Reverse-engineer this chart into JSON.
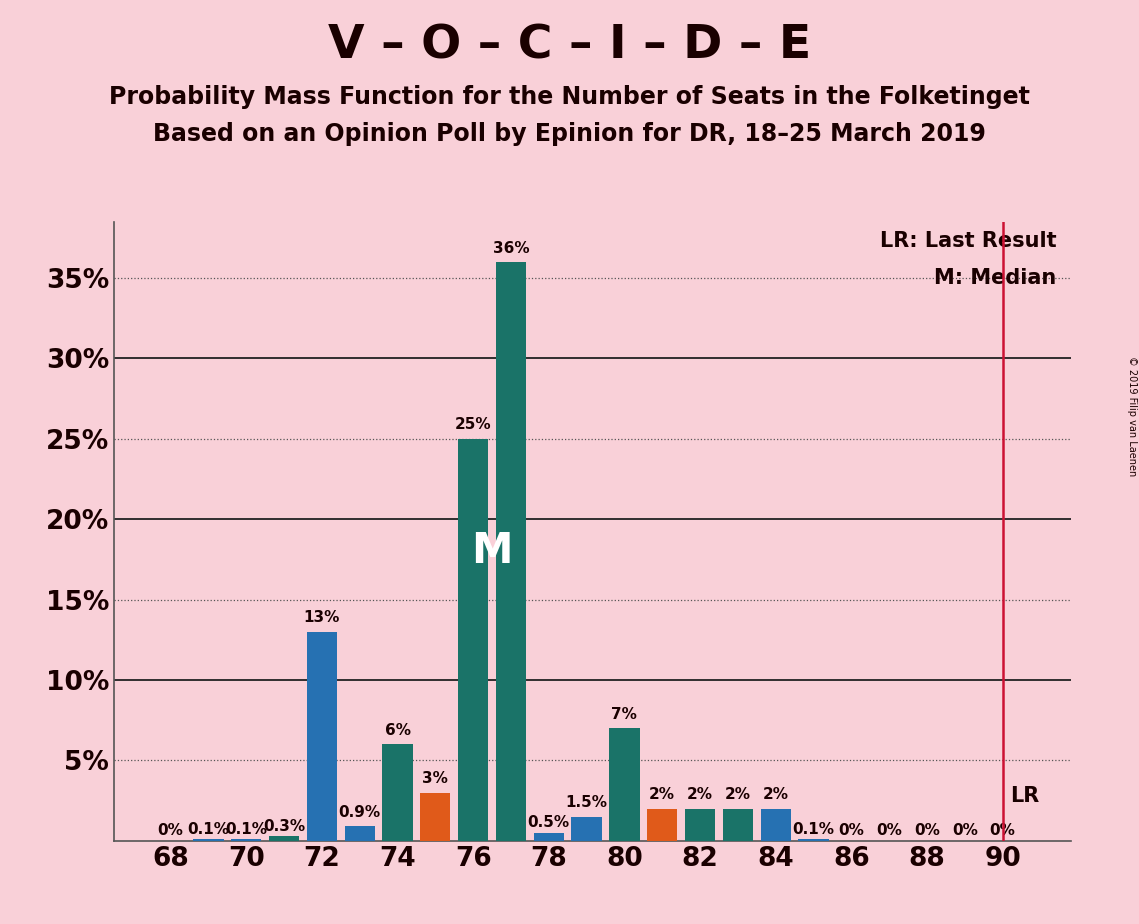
{
  "title_main": "V – O – C – I – D – E",
  "subtitle1": "Probability Mass Function for the Number of Seats in the Folketinget",
  "subtitle2": "Based on an Opinion Poll by Epinion for DR, 18–25 March 2019",
  "copyright": "© 2019 Filip van Laenen",
  "background_color": "#f9d0d8",
  "bars": [
    {
      "seat": 68,
      "value": 0.0,
      "color": "#2671b2"
    },
    {
      "seat": 69,
      "value": 0.001,
      "color": "#2671b2"
    },
    {
      "seat": 70,
      "value": 0.001,
      "color": "#2671b2"
    },
    {
      "seat": 71,
      "value": 0.003,
      "color": "#1a7368"
    },
    {
      "seat": 72,
      "value": 0.13,
      "color": "#2671b2"
    },
    {
      "seat": 73,
      "value": 0.009,
      "color": "#2671b2"
    },
    {
      "seat": 74,
      "value": 0.06,
      "color": "#1a7368"
    },
    {
      "seat": 75,
      "value": 0.03,
      "color": "#e05a1a"
    },
    {
      "seat": 76,
      "value": 0.25,
      "color": "#1a7368"
    },
    {
      "seat": 77,
      "value": 0.36,
      "color": "#1a7368"
    },
    {
      "seat": 78,
      "value": 0.005,
      "color": "#2671b2"
    },
    {
      "seat": 79,
      "value": 0.015,
      "color": "#2671b2"
    },
    {
      "seat": 80,
      "value": 0.07,
      "color": "#1a7368"
    },
    {
      "seat": 81,
      "value": 0.02,
      "color": "#e05a1a"
    },
    {
      "seat": 82,
      "value": 0.02,
      "color": "#1a7368"
    },
    {
      "seat": 83,
      "value": 0.02,
      "color": "#1a7368"
    },
    {
      "seat": 84,
      "value": 0.02,
      "color": "#2671b2"
    },
    {
      "seat": 85,
      "value": 0.001,
      "color": "#2671b2"
    },
    {
      "seat": 86,
      "value": 0.0,
      "color": "#2671b2"
    },
    {
      "seat": 87,
      "value": 0.0,
      "color": "#2671b2"
    },
    {
      "seat": 88,
      "value": 0.0,
      "color": "#2671b2"
    },
    {
      "seat": 89,
      "value": 0.0,
      "color": "#2671b2"
    },
    {
      "seat": 90,
      "value": 0.0,
      "color": "#2671b2"
    }
  ],
  "labels": {
    "68": "0%",
    "69": "0.1%",
    "70": "0.1%",
    "71": "0.3%",
    "72": "13%",
    "73": "0.9%",
    "74": "6%",
    "75": "3%",
    "76": "25%",
    "77": "36%",
    "78": "0.5%",
    "79": "1.5%",
    "80": "7%",
    "81": "2%",
    "82": "2%",
    "83": "2%",
    "84": "2%",
    "85": "0.1%",
    "86": "0%",
    "87": "0%",
    "88": "0%",
    "89": "0%",
    "90": "0%"
  },
  "median_seat": 77,
  "lr_seat": 90,
  "yticks": [
    0.0,
    0.05,
    0.1,
    0.15,
    0.2,
    0.25,
    0.3,
    0.35
  ],
  "ytick_labels": [
    "",
    "5%",
    "10%",
    "15%",
    "20%",
    "25%",
    "30%",
    "35%"
  ],
  "ylim": [
    0,
    0.385
  ],
  "xlim": [
    66.5,
    91.8
  ],
  "xtick_seats": [
    68,
    70,
    72,
    74,
    76,
    78,
    80,
    82,
    84,
    86,
    88,
    90
  ],
  "lr_label": "LR: Last Result",
  "median_label": "M: Median",
  "lr_axis_label": "LR",
  "dotted_lines": [
    0.05,
    0.15,
    0.25,
    0.35
  ],
  "solid_lines": [
    0.1,
    0.2,
    0.3
  ],
  "bar_width": 0.8,
  "main_font_size": 34,
  "subtitle_font_size": 17,
  "axis_tick_font_size": 19,
  "bar_label_font_size": 11,
  "legend_font_size": 15,
  "lr_label_font_size": 15,
  "median_text_color": "#ffffff",
  "text_color": "#1a0000",
  "lr_line_color": "#cc1133",
  "grid_color": "#555555",
  "solid_line_color": "#222222"
}
